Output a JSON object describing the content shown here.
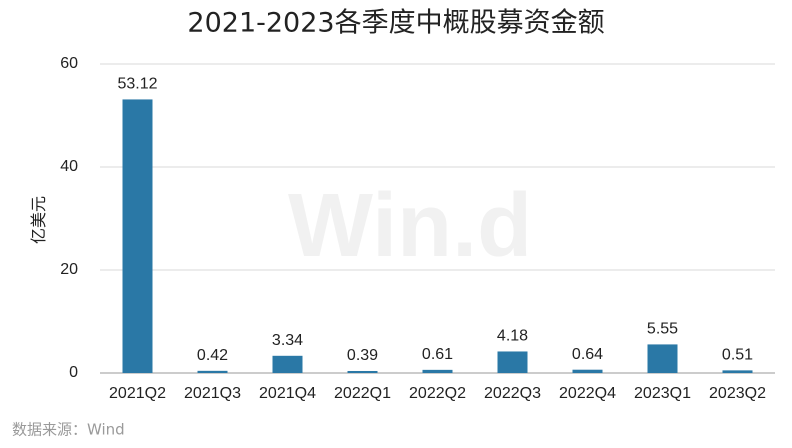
{
  "chart_data": {
    "type": "bar",
    "title": "2021-2023各季度中概股募资金额",
    "y_label": "亿美元",
    "source": "数据来源：Wind",
    "watermark": "Win.d",
    "categories": [
      "2021Q2",
      "2021Q3",
      "2021Q4",
      "2022Q1",
      "2022Q2",
      "2022Q3",
      "2022Q4",
      "2023Q1",
      "2023Q2"
    ],
    "values": [
      53.12,
      0.42,
      3.34,
      0.39,
      0.61,
      4.18,
      0.64,
      5.55,
      0.51
    ],
    "color": "#2a78a6",
    "ylim": [
      0,
      60
    ],
    "yticks": [
      0,
      20,
      40,
      60
    ],
    "grid": true
  }
}
